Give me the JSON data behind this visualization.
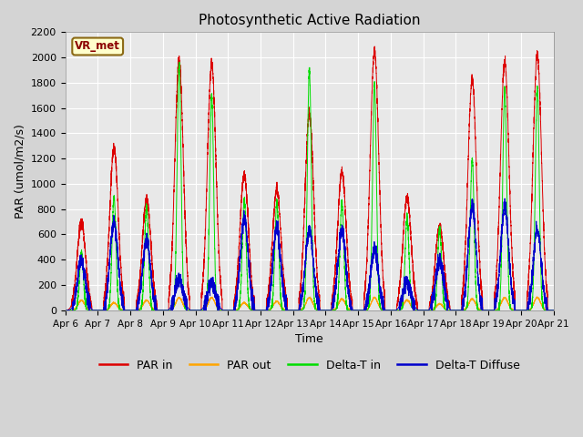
{
  "title": "Photosynthetic Active Radiation",
  "ylabel": "PAR (umol/m2/s)",
  "xlabel": "Time",
  "ylim": [
    0,
    2200
  ],
  "yticks": [
    0,
    200,
    400,
    600,
    800,
    1000,
    1200,
    1400,
    1600,
    1800,
    2000,
    2200
  ],
  "xtick_labels": [
    "Apr 6",
    "Apr 7",
    "Apr 8",
    "Apr 9",
    "Apr 10",
    "Apr 11",
    "Apr 12",
    "Apr 13",
    "Apr 14",
    "Apr 15",
    "Apr 16",
    "Apr 17",
    "Apr 18",
    "Apr 19",
    "Apr 20",
    "Apr 21"
  ],
  "fig_bg_color": "#d4d4d4",
  "plot_bg_color": "#e8e8e8",
  "grid_color": "#ffffff",
  "line_colors": {
    "par_in": "#dd0000",
    "par_out": "#ffa500",
    "delta_t_in": "#00dd00",
    "delta_t_diffuse": "#0000cc"
  },
  "legend_labels": [
    "PAR in",
    "PAR out",
    "Delta-T in",
    "Delta-T Diffuse"
  ],
  "watermark_text": "VR_met",
  "day_peaks_par_in": [
    700,
    1280,
    880,
    1980,
    1950,
    1070,
    960,
    1560,
    1100,
    2050,
    890,
    660,
    1830,
    1970,
    2020
  ],
  "day_peaks_par_out": [
    80,
    60,
    80,
    100,
    100,
    60,
    70,
    100,
    90,
    100,
    80,
    50,
    90,
    100,
    100
  ],
  "day_peaks_delta_t_in": [
    450,
    900,
    820,
    1950,
    1700,
    880,
    850,
    1900,
    850,
    1780,
    730,
    650,
    1200,
    1750,
    1760
  ],
  "day_peaks_delta_t_diffuse": [
    400,
    700,
    550,
    250,
    220,
    730,
    650,
    640,
    630,
    480,
    220,
    390,
    820,
    820,
    640
  ],
  "sigma_par_in": 0.13,
  "sigma_par_out": 0.1,
  "sigma_delta_t_in": 0.06,
  "sigma_delta_t_diffuse": 0.12
}
